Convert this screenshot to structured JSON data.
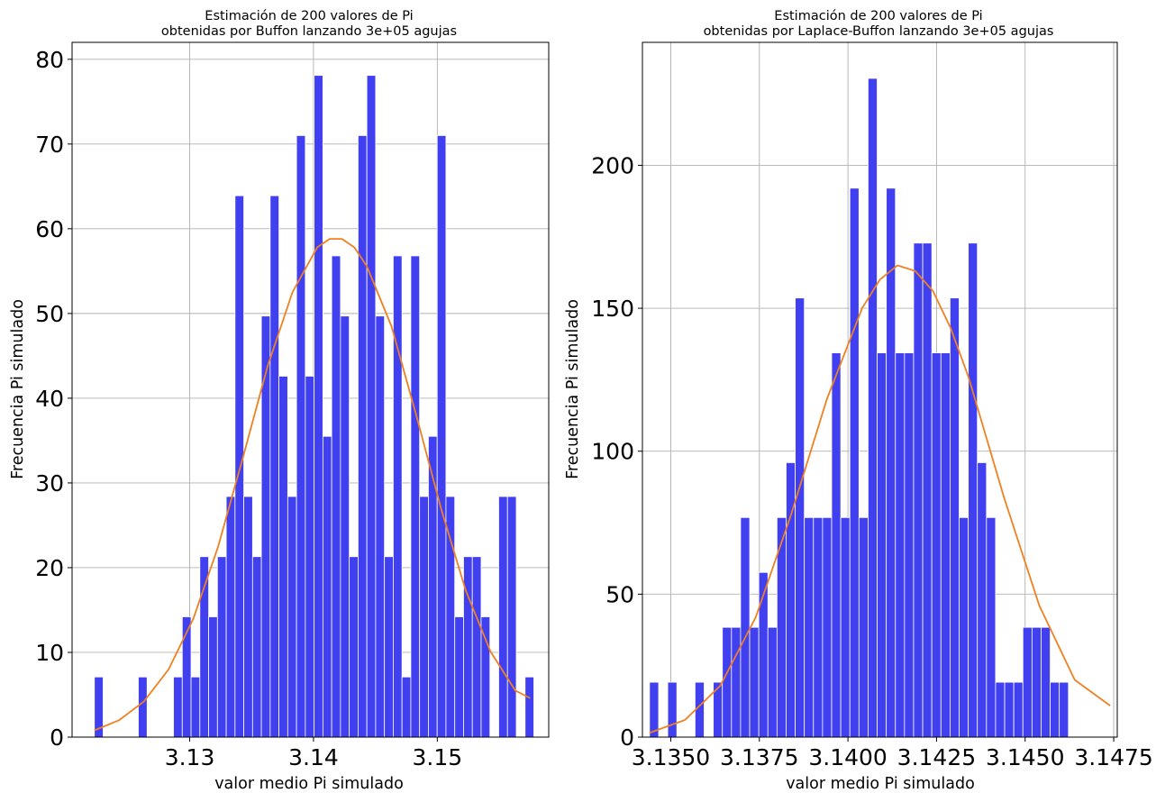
{
  "chart_data": [
    {
      "type": "bar",
      "title_line1": "Estimación de 200 valores de Pi",
      "title_line2": "obtenidas por Buffon lanzando 3e+05 agujas",
      "xlabel": "valor medio Pi simulado",
      "ylabel": "Frecuencia Pi simulado",
      "xlim": [
        3.1205,
        3.159
      ],
      "ylim": [
        0,
        82
      ],
      "xticks": [
        3.13,
        3.14,
        3.15
      ],
      "xtick_labels": [
        "3.13",
        "3.14",
        "3.15"
      ],
      "yticks": [
        0,
        10,
        20,
        30,
        40,
        50,
        60,
        70,
        80
      ],
      "ytick_labels": [
        "0",
        "10",
        "20",
        "30",
        "40",
        "50",
        "60",
        "70",
        "80"
      ],
      "grid": true,
      "bar_color": "#4040f0",
      "curve_color": "#f08020",
      "bins": {
        "start": 3.1223,
        "width": 0.00071,
        "values": [
          7.1,
          0,
          0,
          0,
          0,
          7.1,
          0,
          0,
          0,
          7.1,
          14.2,
          7.1,
          21.3,
          14.2,
          21.3,
          28.4,
          63.9,
          28.4,
          21.3,
          49.7,
          63.9,
          42.6,
          28.4,
          71.0,
          42.6,
          78.1,
          35.5,
          56.8,
          49.7,
          21.3,
          71.0,
          78.1,
          49.7,
          21.3,
          56.8,
          7.1,
          56.8,
          28.4,
          35.5,
          71.0,
          28.4,
          14.2,
          21.3,
          21.3,
          14.2,
          0,
          28.4,
          28.4,
          0,
          7.1
        ]
      },
      "fit_curve": {
        "x": [
          3.1223,
          3.1243,
          3.1263,
          3.1283,
          3.1303,
          3.1323,
          3.1343,
          3.1363,
          3.1383,
          3.1403,
          3.1413,
          3.1423,
          3.1433,
          3.1443,
          3.1463,
          3.1483,
          3.1503,
          3.1523,
          3.1543,
          3.1563,
          3.1575
        ],
        "y": [
          0.8,
          2.0,
          4.2,
          8.0,
          14.0,
          22.5,
          33.0,
          43.8,
          52.5,
          57.8,
          58.8,
          58.8,
          57.8,
          55.6,
          48.5,
          38.0,
          27.0,
          17.3,
          10.1,
          5.5,
          4.6
        ]
      }
    },
    {
      "type": "bar",
      "title_line1": "Estimación de 200 valores de Pi",
      "title_line2": "obtenidas por Laplace-Buffon lanzando 3e+05 agujas",
      "xlabel": "valor medio Pi simulado",
      "ylabel": "Frecuencia Pi simulado",
      "xlim": [
        3.1342,
        3.1476
      ],
      "ylim": [
        0,
        243
      ],
      "xticks": [
        3.135,
        3.1375,
        3.14,
        3.1425,
        3.145,
        3.1475
      ],
      "xtick_labels": [
        "3.1350",
        "3.1375",
        "3.1400",
        "3.1425",
        "3.1450",
        "3.1475"
      ],
      "yticks": [
        0,
        50,
        100,
        150,
        200
      ],
      "ytick_labels": [
        "0",
        "50",
        "100",
        "150",
        "200"
      ],
      "grid": true,
      "bar_color": "#4040f0",
      "curve_color": "#f08020",
      "bins": {
        "start": 3.1344,
        "width": 0.000257,
        "values": [
          19.2,
          0,
          19.2,
          0,
          0,
          19.2,
          0,
          19.2,
          38.4,
          38.4,
          76.8,
          38.4,
          57.6,
          38.4,
          76.8,
          96.0,
          153.6,
          76.8,
          76.8,
          76.8,
          134.4,
          76.8,
          192.0,
          76.8,
          230.4,
          134.4,
          192.0,
          134.4,
          134.4,
          172.8,
          172.8,
          134.4,
          134.4,
          153.6,
          76.8,
          172.8,
          96.0,
          76.8,
          19.2,
          19.2,
          19.2,
          38.4,
          38.4,
          38.4,
          19.2,
          19.2
        ]
      },
      "fit_curve": {
        "x": [
          3.1344,
          3.1354,
          3.1364,
          3.1374,
          3.1384,
          3.1394,
          3.1404,
          3.1409,
          3.1414,
          3.1419,
          3.1424,
          3.1429,
          3.1434,
          3.1444,
          3.1454,
          3.1464,
          3.1474
        ],
        "y": [
          1.5,
          6.0,
          18.0,
          42.0,
          78.0,
          118.0,
          150.0,
          160.0,
          165.0,
          163.0,
          156.0,
          143.0,
          126.0,
          84.0,
          46.0,
          20.0,
          11.0
        ]
      }
    }
  ]
}
